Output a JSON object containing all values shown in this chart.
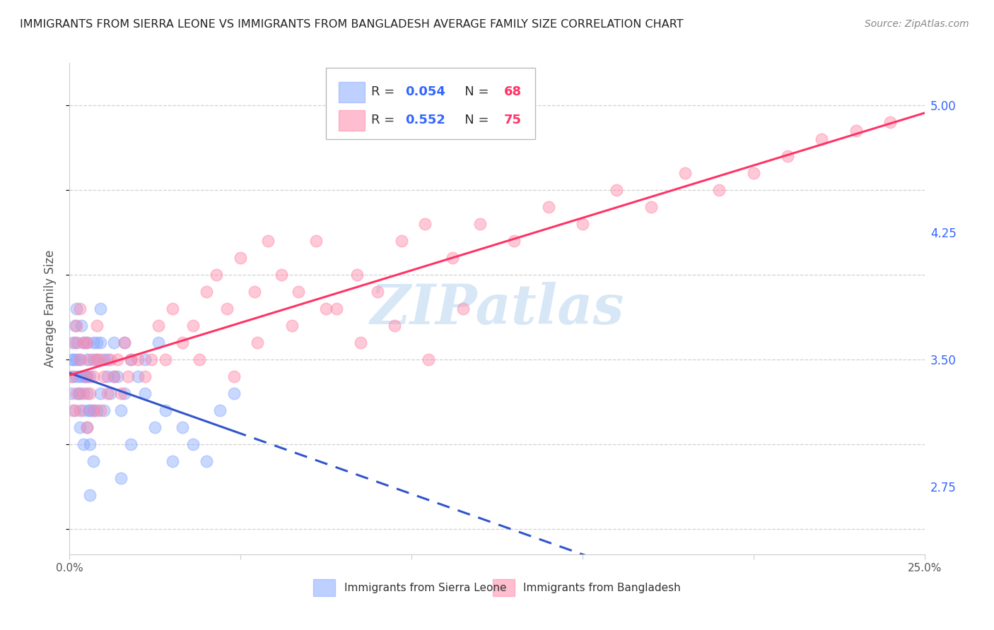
{
  "title": "IMMIGRANTS FROM SIERRA LEONE VS IMMIGRANTS FROM BANGLADESH AVERAGE FAMILY SIZE CORRELATION CHART",
  "source": "Source: ZipAtlas.com",
  "ylabel": "Average Family Size",
  "right_yticks": [
    2.75,
    3.5,
    4.25,
    5.0
  ],
  "background_color": "#ffffff",
  "grid_color": "#d0d0d0",
  "sierra_leone_color": "#88aaff",
  "bangladesh_color": "#ff88aa",
  "sierra_leone_line_color": "#3355cc",
  "bangladesh_line_color": "#ff3366",
  "sierra_leone_R": 0.054,
  "sierra_leone_N": 68,
  "bangladesh_R": 0.552,
  "bangladesh_N": 75,
  "watermark": "ZIPatlas",
  "xlim": [
    0.0,
    0.25
  ],
  "ylim": [
    2.35,
    5.25
  ],
  "sierra_leone_x": [
    0.0005,
    0.0008,
    0.001,
    0.001,
    0.0012,
    0.0015,
    0.0015,
    0.002,
    0.002,
    0.002,
    0.0022,
    0.0025,
    0.003,
    0.003,
    0.003,
    0.003,
    0.0035,
    0.004,
    0.004,
    0.004,
    0.004,
    0.0045,
    0.005,
    0.005,
    0.005,
    0.005,
    0.0055,
    0.006,
    0.006,
    0.006,
    0.007,
    0.007,
    0.007,
    0.008,
    0.008,
    0.009,
    0.009,
    0.01,
    0.01,
    0.011,
    0.012,
    0.013,
    0.014,
    0.015,
    0.016,
    0.018,
    0.02,
    0.022,
    0.025,
    0.028,
    0.03,
    0.033,
    0.036,
    0.04,
    0.044,
    0.048,
    0.022,
    0.026,
    0.015,
    0.018,
    0.008,
    0.006,
    0.007,
    0.005,
    0.009,
    0.011,
    0.013,
    0.016
  ],
  "sierra_leone_y": [
    3.3,
    3.5,
    3.6,
    3.4,
    3.5,
    3.7,
    3.2,
    3.8,
    3.4,
    3.5,
    3.6,
    3.3,
    3.1,
    3.3,
    3.4,
    3.5,
    3.7,
    3.0,
    3.2,
    3.4,
    3.6,
    3.4,
    3.1,
    3.3,
    3.5,
    3.6,
    3.2,
    3.0,
    3.2,
    3.4,
    3.2,
    3.5,
    3.6,
    3.2,
    3.6,
    3.3,
    3.8,
    3.2,
    3.5,
    3.4,
    3.3,
    3.6,
    3.4,
    3.2,
    3.3,
    3.5,
    3.4,
    3.3,
    3.1,
    3.2,
    2.9,
    3.1,
    3.0,
    2.9,
    3.2,
    3.3,
    3.5,
    3.6,
    2.8,
    3.0,
    3.5,
    2.7,
    2.9,
    3.4,
    3.6,
    3.5,
    3.4,
    3.6
  ],
  "bangladesh_x": [
    0.0005,
    0.001,
    0.0015,
    0.002,
    0.002,
    0.003,
    0.003,
    0.003,
    0.004,
    0.004,
    0.005,
    0.005,
    0.005,
    0.006,
    0.006,
    0.007,
    0.007,
    0.008,
    0.008,
    0.009,
    0.009,
    0.01,
    0.011,
    0.012,
    0.013,
    0.014,
    0.015,
    0.016,
    0.017,
    0.018,
    0.02,
    0.022,
    0.024,
    0.026,
    0.028,
    0.03,
    0.033,
    0.036,
    0.04,
    0.043,
    0.046,
    0.05,
    0.054,
    0.058,
    0.062,
    0.067,
    0.072,
    0.078,
    0.084,
    0.09,
    0.097,
    0.104,
    0.112,
    0.12,
    0.13,
    0.14,
    0.15,
    0.16,
    0.17,
    0.18,
    0.19,
    0.2,
    0.21,
    0.22,
    0.23,
    0.24,
    0.038,
    0.048,
    0.055,
    0.065,
    0.075,
    0.085,
    0.095,
    0.105,
    0.115
  ],
  "bangladesh_y": [
    3.4,
    3.2,
    3.6,
    3.3,
    3.7,
    3.2,
    3.5,
    3.8,
    3.3,
    3.6,
    3.1,
    3.4,
    3.6,
    3.3,
    3.5,
    3.2,
    3.4,
    3.5,
    3.7,
    3.2,
    3.5,
    3.4,
    3.3,
    3.5,
    3.4,
    3.5,
    3.3,
    3.6,
    3.4,
    3.5,
    3.5,
    3.4,
    3.5,
    3.7,
    3.5,
    3.8,
    3.6,
    3.7,
    3.9,
    4.0,
    3.8,
    4.1,
    3.9,
    4.2,
    4.0,
    3.9,
    4.2,
    3.8,
    4.0,
    3.9,
    4.2,
    4.3,
    4.1,
    4.3,
    4.2,
    4.4,
    4.3,
    4.5,
    4.4,
    4.6,
    4.5,
    4.6,
    4.7,
    4.8,
    4.85,
    4.9,
    3.5,
    3.4,
    3.6,
    3.7,
    3.8,
    3.6,
    3.7,
    3.5,
    3.8
  ],
  "legend_R_color": "#3366ff",
  "legend_N_color": "#ff3366",
  "legend_text_color": "#333333"
}
